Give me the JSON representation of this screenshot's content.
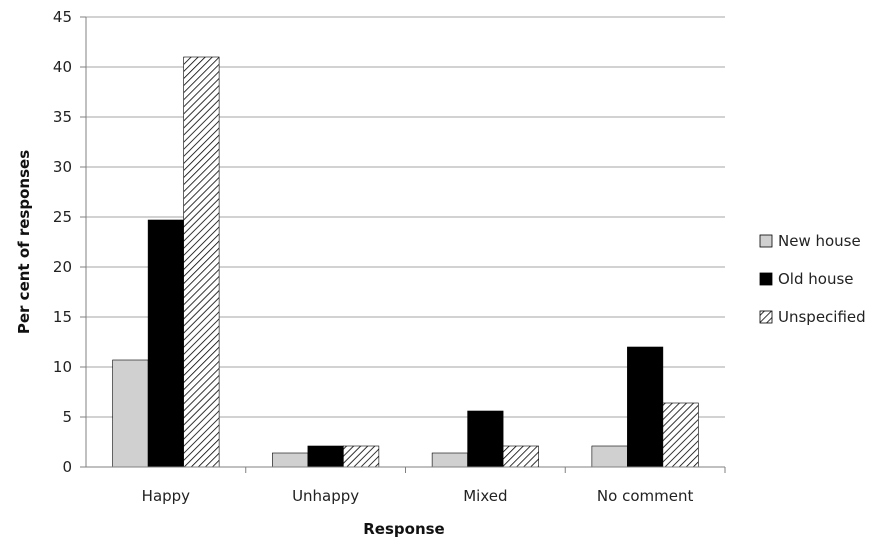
{
  "chart_data": {
    "type": "bar",
    "title": "",
    "xlabel": "Response",
    "ylabel": "Per cent of responses",
    "ylim": [
      0,
      45
    ],
    "yticks": [
      0,
      5,
      10,
      15,
      20,
      25,
      30,
      35,
      40,
      45
    ],
    "grid": true,
    "legend_position": "right",
    "categories": [
      "Happy",
      "Unhappy",
      "Mixed",
      "No comment"
    ],
    "series": [
      {
        "name": "New house",
        "color": "#d0d0d0",
        "pattern": "solid",
        "values": [
          10.7,
          1.4,
          1.4,
          2.1
        ]
      },
      {
        "name": "Old house",
        "color": "#000000",
        "pattern": "solid",
        "values": [
          24.7,
          2.1,
          5.6,
          12.0
        ]
      },
      {
        "name": "Unspecified",
        "color": "#ffffff",
        "pattern": "diagonal-hatch",
        "values": [
          41.0,
          2.1,
          2.1,
          6.4
        ]
      }
    ]
  }
}
